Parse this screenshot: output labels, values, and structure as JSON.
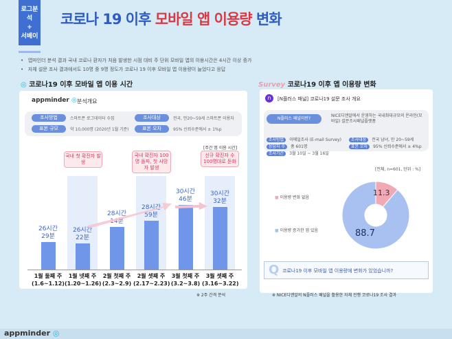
{
  "header": {
    "badge_top": "로그분석",
    "badge_plus": "+",
    "badge_bottom": "서베이",
    "title_a": "코로나 19 이후 ",
    "title_b": "모바일 앱 이용량",
    "title_c": " 변화"
  },
  "bullets": [
    "앱마인더 분석 결과 국내 코로나 환자가 처음 발생한 시점 대비 주 단위 모바일 앱의 이용시간은 4시간 이상 증가",
    "자체 설문 조사 결과에서도 10명 중 9명 정도가 코로나 19 이후 모바일 앱 이용량이 늘었다고 응답"
  ],
  "left": {
    "section_title": "코로나19 이후 모바일 앱 이용 시간",
    "logo": "appminder",
    "overview": "분석개요",
    "info": [
      {
        "label": "조사방법",
        "value": "스마트폰 로그데이터 수집"
      },
      {
        "label": "조사대상",
        "value": "전국, 만20~59세 스마트폰 이용자"
      },
      {
        "label": "표본 규모",
        "value": "약 10,000명 (2020년 1월 기준)"
      },
      {
        "label": "표본 오차",
        "value": "95% 신뢰수준에서 ± 1%p"
      }
    ],
    "unit": "[주간 앱 이용 시간]",
    "note": "※ 2주 간격 분석",
    "callouts": [
      "국내 첫 확진자 발생",
      "국내 확진자 100명 돌파, 첫 사망자 발생",
      "신규 확진자 수 100명대로 둔화"
    ]
  },
  "chart_data": {
    "type": "bar",
    "categories": [
      "1월 둘째 주 (1.6~1.12)",
      "1월 넷째 주 (1.20~1.26)",
      "2월 첫째 주 (2.3~2.9)",
      "2월 셋째 주 (2.17~2.23)",
      "3월 첫째 주 (3.2~3.8)",
      "3월 셋째 주 (3.16~3.22)"
    ],
    "cat_lines": [
      [
        "1월 둘째 주",
        "(1.6~1.12)"
      ],
      [
        "1월 넷째 주",
        "(1.20~1.26)"
      ],
      [
        "2월 첫째 주",
        "(2.3~2.9)"
      ],
      [
        "2월 셋째 주",
        "(2.17~2.23)"
      ],
      [
        "3월 첫째 주",
        "(3.2~3.8)"
      ],
      [
        "3월 셋째 주",
        "(3.16~3.22)"
      ]
    ],
    "values_minutes": [
      1589,
      1582,
      1694,
      1739,
      1846,
      1832
    ],
    "labels": [
      [
        "26시간",
        "29분"
      ],
      [
        "26시간",
        "22분"
      ],
      [
        "28시간",
        "14분"
      ],
      [
        "28시간",
        "59분"
      ],
      [
        "30시간",
        "46분"
      ],
      [
        "30시간",
        "32분"
      ]
    ],
    "ylabel": "[주간 앱 이용 시간]",
    "bar_color": "#6f96e8"
  },
  "right": {
    "section_logo": "Survey",
    "section_title": "코로나19 이후 앱 이용량 변화",
    "overview": "[N플러스 패널] 코로나19 설문 조사 개요",
    "panel_btn": "N플러스 패널이란?",
    "panel_desc": "NICE디앤알에서 운영하는 국내최대규모의 온라인(모바일) 설문조사패널플랫폼",
    "info": [
      {
        "label": "조사방법",
        "value": "이메일조사 (E-mail Survey)"
      },
      {
        "label": "조사대상",
        "value": "전국 남녀, 만 20~59세"
      },
      {
        "label": "응답자 수",
        "value": "총 601명"
      },
      {
        "label": "표본 오차",
        "value": "95% 신뢰수준에서 ± 4%p"
      },
      {
        "label": "조사기간",
        "value": "3월 10일 ~ 3월 16일"
      }
    ],
    "unit": "[전체, n=601, 단위 : %]",
    "question": "코로나19 이후 모바일 앱 이용량에 변화가 있었습니까?",
    "note": "※ NICE디앤알의 N플러스 패널을 활용한 자체 진행 코로나19 조사 결과",
    "pie": [
      {
        "label": "이용량 변화 없음",
        "value": 11.3,
        "color": "#f2a9b6"
      },
      {
        "label": "이용량 증가한 앱 있음",
        "value": 88.7,
        "color": "#a9c1f0"
      }
    ]
  },
  "footer": {
    "logo": "appminder"
  }
}
